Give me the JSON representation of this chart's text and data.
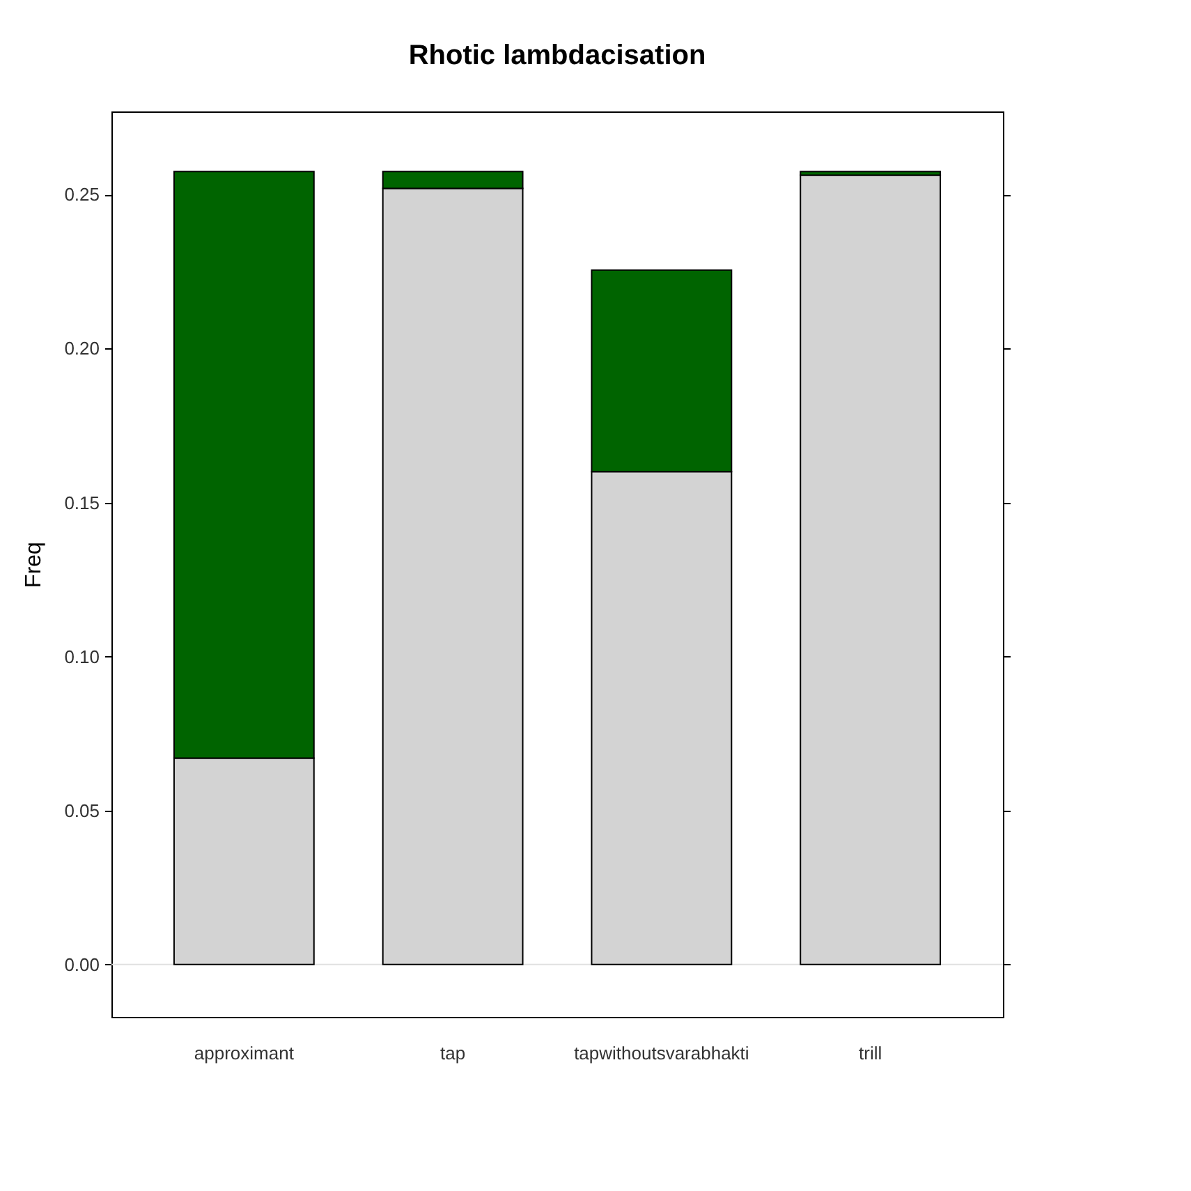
{
  "chart_data": {
    "type": "bar",
    "title": "Rhotic lambdacisation",
    "ylabel": "Freq",
    "categories": [
      "approximant",
      "tap",
      "tapwithoutsvarabhakti",
      "trill"
    ],
    "stacked": true,
    "series": [
      {
        "color": "#d3d3d3",
        "values": [
          0.067,
          0.252,
          0.16,
          0.2563
        ]
      },
      {
        "color": "#006400",
        "values": [
          0.1905,
          0.0055,
          0.0655,
          0.0012
        ]
      }
    ],
    "ylim": [
      -0.017,
      0.277
    ],
    "yticks": [
      {
        "value": 0,
        "label": "0.00"
      },
      {
        "value": 0.05,
        "label": "0.05"
      },
      {
        "value": 0.1,
        "label": "0.10"
      },
      {
        "value": 0.15,
        "label": "0.15"
      },
      {
        "value": 0.2,
        "label": "0.20"
      },
      {
        "value": 0.25,
        "label": "0.25"
      }
    ],
    "ref_lines": [
      {
        "axis": "y",
        "value": 0,
        "color": "#e0e0e0"
      }
    ],
    "grid": false
  }
}
